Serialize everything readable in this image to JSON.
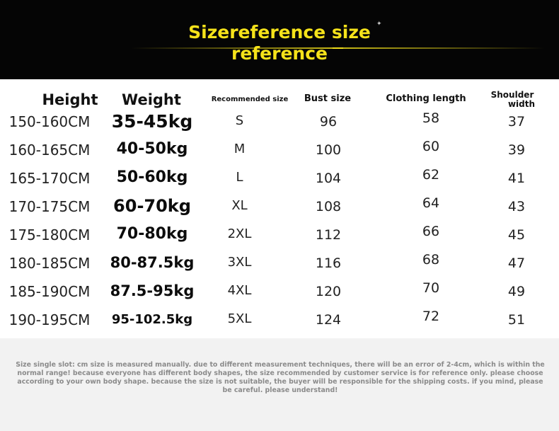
{
  "title": {
    "line1": "Sizereference size",
    "line2": "reference"
  },
  "columns": {
    "height": "Height",
    "weight": "Weight",
    "recommended_size": "Recommended size",
    "bust_size": "Bust size",
    "clothing_length": "Clothing length",
    "shoulder_line1": "Shoulder",
    "shoulder_line2": "width"
  },
  "rows": [
    {
      "height": "150-160CM",
      "weight": "35-45kg",
      "size": "S",
      "bust": "96",
      "length": "58",
      "shoulder": "37"
    },
    {
      "height": "160-165CM",
      "weight": "40-50kg",
      "size": "M",
      "bust": "100",
      "length": "60",
      "shoulder": "39"
    },
    {
      "height": "165-170CM",
      "weight": "50-60kg",
      "size": "L",
      "bust": "104",
      "length": "62",
      "shoulder": "41"
    },
    {
      "height": "170-175CM",
      "weight": "60-70kg",
      "size": "XL",
      "bust": "108",
      "length": "64",
      "shoulder": "43"
    },
    {
      "height": "175-180CM",
      "weight": "70-80kg",
      "size": "2XL",
      "bust": "112",
      "length": "66",
      "shoulder": "45"
    },
    {
      "height": "180-185CM",
      "weight": "80-87.5kg",
      "size": "3XL",
      "bust": "116",
      "length": "68",
      "shoulder": "47"
    },
    {
      "height": "185-190CM",
      "weight": "87.5-95kg",
      "size": "4XL",
      "bust": "120",
      "length": "70",
      "shoulder": "49"
    },
    {
      "height": "190-195CM",
      "weight": "95-102.5kg",
      "size": "5XL",
      "bust": "124",
      "length": "72",
      "shoulder": "51"
    }
  ],
  "note": "Size single slot: cm size is measured manually. due to different measurement techniques, there will be an error of 2-4cm, which is within the normal range! because everyone has different body shapes, the size recommended by customer service is for reference only. please choose according to your own body shape. because the size is not suitable, the buyer will be responsible for the shipping costs. if you mind, please be careful. please understand!",
  "colors": {
    "header_bg": "#050505",
    "title": "#f5e21a",
    "note_bg": "#f2f2f2",
    "note_text": "#8a8a8a"
  }
}
